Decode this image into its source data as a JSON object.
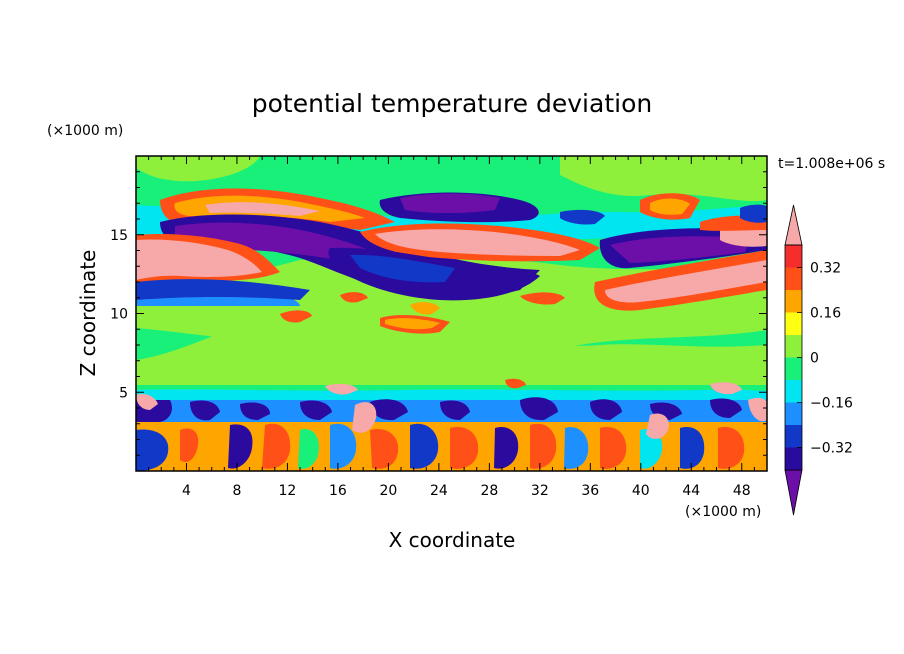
{
  "chart_data": {
    "type": "heatmap",
    "title": "potential temperature deviation",
    "time_label": "t=1.008e+06 s",
    "xlabel": "X coordinate",
    "ylabel": "Z coordinate",
    "x_unit": "(×1000 m)",
    "y_unit": "(×1000 m)",
    "xlim": [
      0,
      50
    ],
    "ylim": [
      0,
      20
    ],
    "x_ticks": [
      "4",
      "8",
      "12",
      "16",
      "20",
      "24",
      "28",
      "32",
      "36",
      "40",
      "44",
      "48"
    ],
    "y_ticks": [
      "5",
      "10",
      "15"
    ],
    "colorbar": {
      "levels": [
        -0.4,
        -0.32,
        -0.24,
        -0.16,
        -0.08,
        0,
        0.08,
        0.16,
        0.24,
        0.32,
        0.4
      ],
      "labels": [
        "0.32",
        "0.16",
        "0",
        "−0.16",
        "−0.32"
      ],
      "colors": [
        "#6c0fa8",
        "#2b0a9e",
        "#1238c8",
        "#1e8fff",
        "#00e5f0",
        "#19f07a",
        "#8ef03a",
        "#ffff14",
        "#ffa500",
        "#ff5018",
        "#f52d2d",
        "#f7a8a8"
      ]
    }
  }
}
